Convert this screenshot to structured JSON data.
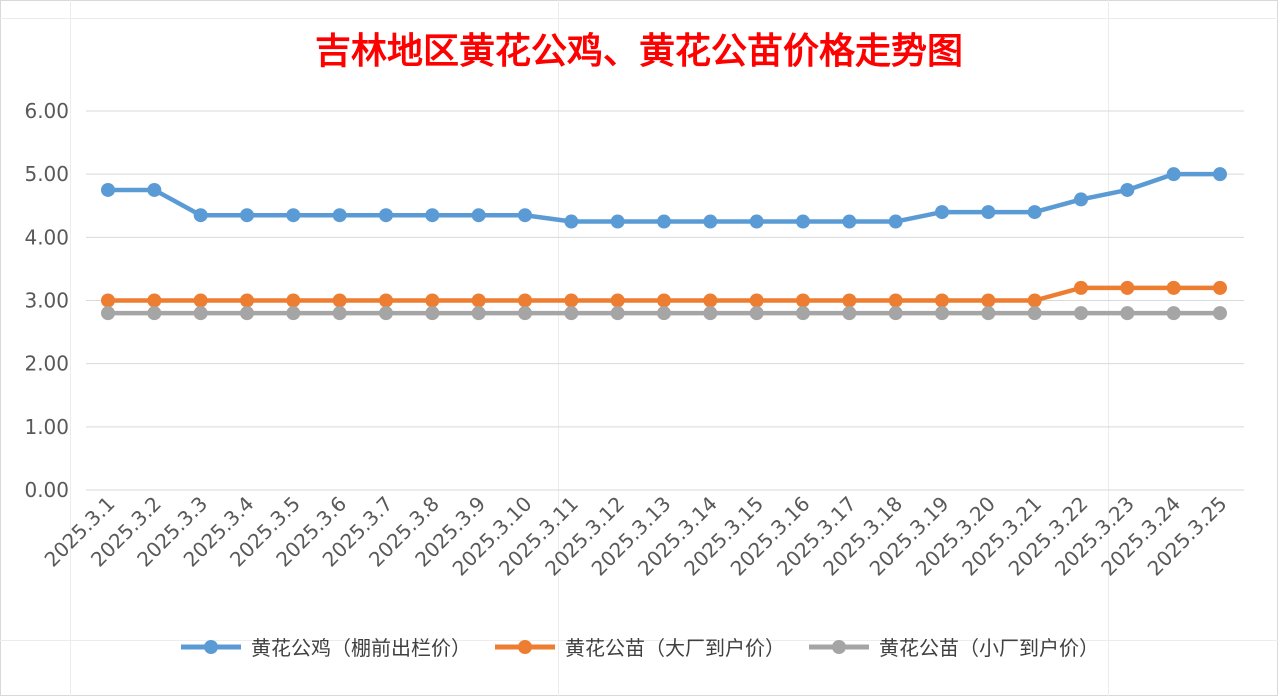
{
  "chart_data": {
    "type": "line",
    "title": "吉林地区黄花公鸡、黄花公苗价格走势图",
    "xlabel": "",
    "ylabel": "",
    "ylim": [
      0,
      6
    ],
    "yticks": [
      "0.00",
      "1.00",
      "2.00",
      "3.00",
      "4.00",
      "5.00",
      "6.00"
    ],
    "categories": [
      "2025.3.1",
      "2025.3.2",
      "2025.3.3",
      "2025.3.4",
      "2025.3.5",
      "2025.3.6",
      "2025.3.7",
      "2025.3.8",
      "2025.3.9",
      "2025.3.10",
      "2025.3.11",
      "2025.3.12",
      "2025.3.13",
      "2025.3.14",
      "2025.3.15",
      "2025.3.16",
      "2025.3.17",
      "2025.3.18",
      "2025.3.19",
      "2025.3.20",
      "2025.3.21",
      "2025.3.22",
      "2025.3.23",
      "2025.3.24",
      "2025.3.25"
    ],
    "series": [
      {
        "name": "黄花公鸡（棚前出栏价）",
        "color": "#5b9bd5",
        "values": [
          4.75,
          4.75,
          4.35,
          4.35,
          4.35,
          4.35,
          4.35,
          4.35,
          4.35,
          4.35,
          4.25,
          4.25,
          4.25,
          4.25,
          4.25,
          4.25,
          4.25,
          4.25,
          4.4,
          4.4,
          4.4,
          4.6,
          4.75,
          5.0,
          5.0
        ]
      },
      {
        "name": "黄花公苗（大厂到户价）",
        "color": "#ed7d31",
        "values": [
          3.0,
          3.0,
          3.0,
          3.0,
          3.0,
          3.0,
          3.0,
          3.0,
          3.0,
          3.0,
          3.0,
          3.0,
          3.0,
          3.0,
          3.0,
          3.0,
          3.0,
          3.0,
          3.0,
          3.0,
          3.0,
          3.2,
          3.2,
          3.2,
          3.2
        ]
      },
      {
        "name": "黄花公苗（小厂到户价）",
        "color": "#a5a5a5",
        "values": [
          2.8,
          2.8,
          2.8,
          2.8,
          2.8,
          2.8,
          2.8,
          2.8,
          2.8,
          2.8,
          2.8,
          2.8,
          2.8,
          2.8,
          2.8,
          2.8,
          2.8,
          2.8,
          2.8,
          2.8,
          2.8,
          2.8,
          2.8,
          2.8,
          2.8
        ]
      }
    ],
    "grid": true,
    "legend_position": "bottom"
  }
}
